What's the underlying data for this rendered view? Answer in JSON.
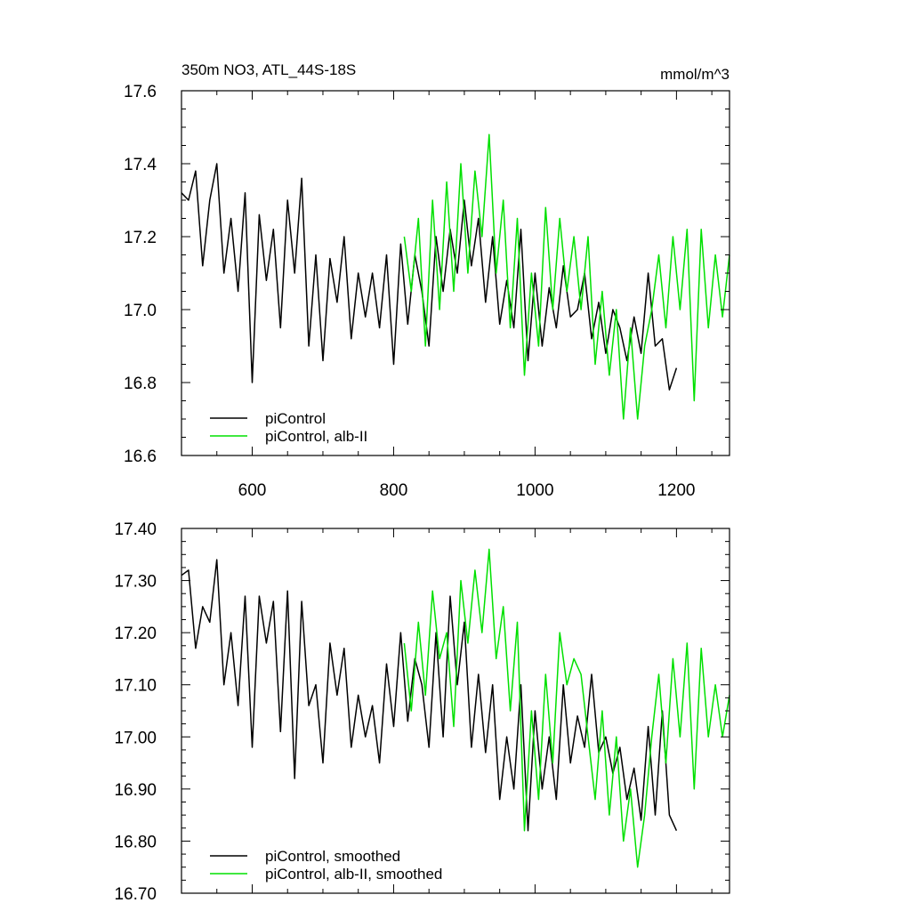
{
  "chart_data": [
    {
      "type": "line",
      "title": "350m NO3, ATL_44S-18S",
      "units": "mmol/m^3",
      "xlim": [
        500,
        1275
      ],
      "ylim": [
        16.6,
        17.6
      ],
      "x_ticks": [
        600,
        800,
        1000,
        1200
      ],
      "x_tick_labels": [
        "600",
        "800",
        "1000",
        "1200"
      ],
      "y_ticks": [
        16.6,
        16.8,
        17.0,
        17.2,
        17.4,
        17.6
      ],
      "y_tick_labels": [
        "16.6",
        "16.8",
        "17.0",
        "17.2",
        "17.4",
        "17.6"
      ],
      "legend": "bottom-left",
      "series": [
        {
          "name": "piControl",
          "color": "#000000",
          "x": [
            500,
            510,
            520,
            530,
            540,
            550,
            560,
            570,
            580,
            590,
            600,
            610,
            620,
            630,
            640,
            650,
            660,
            670,
            680,
            690,
            700,
            710,
            720,
            730,
            740,
            750,
            760,
            770,
            780,
            790,
            800,
            810,
            820,
            830,
            840,
            850,
            860,
            870,
            880,
            890,
            900,
            910,
            920,
            930,
            940,
            950,
            960,
            970,
            980,
            990,
            1000,
            1010,
            1020,
            1030,
            1040,
            1050,
            1060,
            1070,
            1080,
            1090,
            1100,
            1110,
            1120,
            1130,
            1140,
            1150,
            1160,
            1170,
            1180,
            1190,
            1200
          ],
          "values": [
            17.32,
            17.3,
            17.38,
            17.12,
            17.3,
            17.4,
            17.1,
            17.25,
            17.05,
            17.32,
            16.8,
            17.26,
            17.08,
            17.22,
            16.95,
            17.3,
            17.1,
            17.36,
            16.9,
            17.15,
            16.86,
            17.14,
            17.02,
            17.2,
            16.92,
            17.1,
            16.98,
            17.1,
            16.95,
            17.15,
            16.85,
            17.18,
            16.96,
            17.15,
            17.05,
            16.9,
            17.2,
            17.05,
            17.22,
            17.1,
            17.3,
            17.12,
            17.25,
            17.02,
            17.2,
            16.96,
            17.08,
            16.95,
            17.22,
            16.86,
            17.1,
            16.9,
            17.06,
            16.95,
            17.12,
            16.98,
            17.0,
            17.1,
            16.92,
            17.02,
            16.88,
            17.0,
            16.95,
            16.86,
            16.98,
            16.88,
            17.1,
            16.9,
            16.92,
            16.78,
            16.84
          ]
        },
        {
          "name": "piControl, alb-II",
          "color": "#00e000",
          "x": [
            815,
            825,
            835,
            845,
            855,
            865,
            875,
            885,
            895,
            905,
            915,
            925,
            935,
            945,
            955,
            965,
            975,
            985,
            995,
            1005,
            1015,
            1025,
            1035,
            1045,
            1055,
            1065,
            1075,
            1085,
            1095,
            1105,
            1115,
            1125,
            1135,
            1145,
            1155,
            1165,
            1175,
            1185,
            1195,
            1205,
            1215,
            1225,
            1235,
            1245,
            1255,
            1265,
            1275
          ],
          "values": [
            17.2,
            17.05,
            17.25,
            16.9,
            17.3,
            17.0,
            17.35,
            17.05,
            17.4,
            17.1,
            17.38,
            17.2,
            17.48,
            17.1,
            17.3,
            16.95,
            17.25,
            16.82,
            17.1,
            16.9,
            17.28,
            17.0,
            17.25,
            17.05,
            17.2,
            17.0,
            17.2,
            16.85,
            17.05,
            16.82,
            17.0,
            16.7,
            16.95,
            16.7,
            16.9,
            17.0,
            17.15,
            16.95,
            17.2,
            17.0,
            17.22,
            16.75,
            17.22,
            16.95,
            17.15,
            16.98,
            17.15
          ]
        }
      ]
    },
    {
      "type": "line",
      "title": "",
      "xlim": [
        500,
        1275
      ],
      "ylim": [
        16.7,
        17.4
      ],
      "x_ticks": [
        600,
        800,
        1000,
        1200
      ],
      "y_ticks": [
        16.7,
        16.8,
        16.9,
        17.0,
        17.1,
        17.2,
        17.3,
        17.4
      ],
      "y_tick_labels": [
        "16.70",
        "16.80",
        "16.90",
        "17.00",
        "17.10",
        "17.20",
        "17.30",
        "17.40"
      ],
      "legend": "bottom-left",
      "series": [
        {
          "name": "piControl, smoothed",
          "color": "#000000",
          "x": [
            500,
            510,
            520,
            530,
            540,
            550,
            560,
            570,
            580,
            590,
            600,
            610,
            620,
            630,
            640,
            650,
            660,
            670,
            680,
            690,
            700,
            710,
            720,
            730,
            740,
            750,
            760,
            770,
            780,
            790,
            800,
            810,
            820,
            830,
            840,
            850,
            860,
            870,
            880,
            890,
            900,
            910,
            920,
            930,
            940,
            950,
            960,
            970,
            980,
            990,
            1000,
            1010,
            1020,
            1030,
            1040,
            1050,
            1060,
            1070,
            1080,
            1090,
            1100,
            1110,
            1120,
            1130,
            1140,
            1150,
            1160,
            1170,
            1180,
            1190,
            1200
          ],
          "values": [
            17.31,
            17.32,
            17.17,
            17.25,
            17.22,
            17.34,
            17.1,
            17.2,
            17.06,
            17.27,
            16.98,
            17.27,
            17.18,
            17.26,
            17.01,
            17.28,
            16.92,
            17.26,
            17.06,
            17.1,
            16.95,
            17.18,
            17.08,
            17.17,
            16.98,
            17.08,
            17.0,
            17.06,
            16.95,
            17.14,
            17.02,
            17.2,
            17.03,
            17.15,
            17.1,
            16.98,
            17.2,
            17.0,
            17.27,
            17.1,
            17.22,
            16.98,
            17.12,
            16.97,
            17.1,
            16.88,
            17.0,
            16.9,
            17.1,
            16.82,
            17.05,
            16.9,
            17.0,
            16.88,
            17.1,
            16.95,
            17.04,
            16.98,
            17.12,
            16.97,
            17.0,
            16.93,
            16.98,
            16.88,
            16.94,
            16.84,
            17.02,
            16.85,
            17.05,
            16.85,
            16.82
          ]
        },
        {
          "name": "piControl, alb-II, smoothed",
          "color": "#00e000",
          "x": [
            815,
            825,
            835,
            845,
            855,
            865,
            875,
            885,
            895,
            905,
            915,
            925,
            935,
            945,
            955,
            965,
            975,
            985,
            995,
            1005,
            1015,
            1025,
            1035,
            1045,
            1055,
            1065,
            1075,
            1085,
            1095,
            1105,
            1115,
            1125,
            1135,
            1145,
            1155,
            1165,
            1175,
            1185,
            1195,
            1205,
            1215,
            1225,
            1235,
            1245,
            1255,
            1265,
            1275
          ],
          "values": [
            17.18,
            17.05,
            17.22,
            17.08,
            17.28,
            17.15,
            17.2,
            17.02,
            17.3,
            17.18,
            17.32,
            17.2,
            17.36,
            17.15,
            17.25,
            17.05,
            17.22,
            16.82,
            17.05,
            16.88,
            17.12,
            16.95,
            17.2,
            17.1,
            17.15,
            17.12,
            17.0,
            16.88,
            17.05,
            16.85,
            17.0,
            16.8,
            16.9,
            16.75,
            16.85,
            17.0,
            17.12,
            16.95,
            17.15,
            17.0,
            17.18,
            16.9,
            17.17,
            17.0,
            17.1,
            17.0,
            17.08
          ]
        }
      ]
    }
  ]
}
